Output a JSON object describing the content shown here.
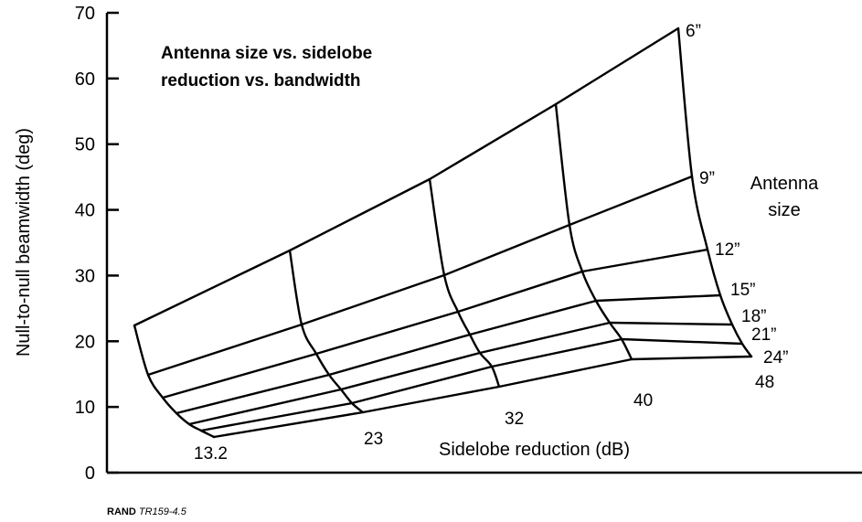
{
  "chart_data": {
    "type": "line",
    "title_lines": [
      "Antenna size vs. sidelobe",
      "reduction vs. bandwidth"
    ],
    "ylabel": "Null-to-null beamwidth (deg)",
    "xlabel": "Sidelobe reduction (dB)",
    "ylim": [
      0,
      70
    ],
    "yticks": [
      0,
      10,
      20,
      30,
      40,
      50,
      60,
      70
    ],
    "sidelobe_reduction_db": [
      "13.2",
      "23",
      "32",
      "40",
      "48"
    ],
    "antenna_size_title_lines": [
      "Antenna",
      "size"
    ],
    "antenna_sizes": [
      "6”",
      "9”",
      "12”",
      "15”",
      "18”",
      "21”",
      "24”"
    ],
    "grid": false
  },
  "source": {
    "org": "RAND",
    "id": "TR159-4.5"
  }
}
